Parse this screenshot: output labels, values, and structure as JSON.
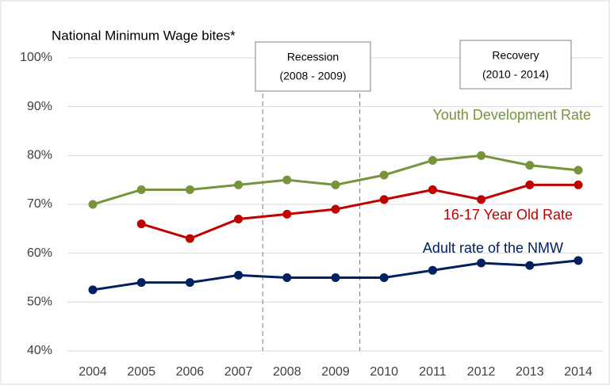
{
  "chart_data": {
    "type": "line",
    "title": "National Minimum Wage bites*",
    "annotations": [
      {
        "lines": [
          "Recession",
          "(2008 - 2009)"
        ]
      },
      {
        "lines": [
          "Recovery",
          "(2010 - 2014)"
        ]
      }
    ],
    "categories": [
      "2004",
      "2005",
      "2006",
      "2007",
      "2008",
      "2009",
      "2010",
      "2011",
      "2012",
      "2013",
      "2014"
    ],
    "series": [
      {
        "name": "Youth Development Rate",
        "color": "#77933c",
        "values": [
          70,
          73,
          73,
          74,
          75,
          74,
          76,
          79,
          80,
          78,
          77
        ]
      },
      {
        "name": "16-17 Year Old Rate",
        "color": "#c00000",
        "values": [
          null,
          66,
          63,
          67,
          68,
          69,
          71,
          73,
          71,
          74,
          74
        ]
      },
      {
        "name": "Adult rate of the NMW",
        "color": "#002060",
        "values": [
          52.5,
          54,
          54,
          55.5,
          55,
          55,
          55,
          56.5,
          58,
          57.5,
          58.5
        ]
      }
    ],
    "ylim": [
      40,
      100
    ],
    "yticks": [
      {
        "value": 40,
        "label": "40%"
      },
      {
        "value": 50,
        "label": "50%"
      },
      {
        "value": 60,
        "label": "60%"
      },
      {
        "value": 70,
        "label": "70%"
      },
      {
        "value": 80,
        "label": "80%"
      },
      {
        "value": 90,
        "label": "90%"
      },
      {
        "value": 100,
        "label": "100%"
      }
    ],
    "grid": true
  }
}
